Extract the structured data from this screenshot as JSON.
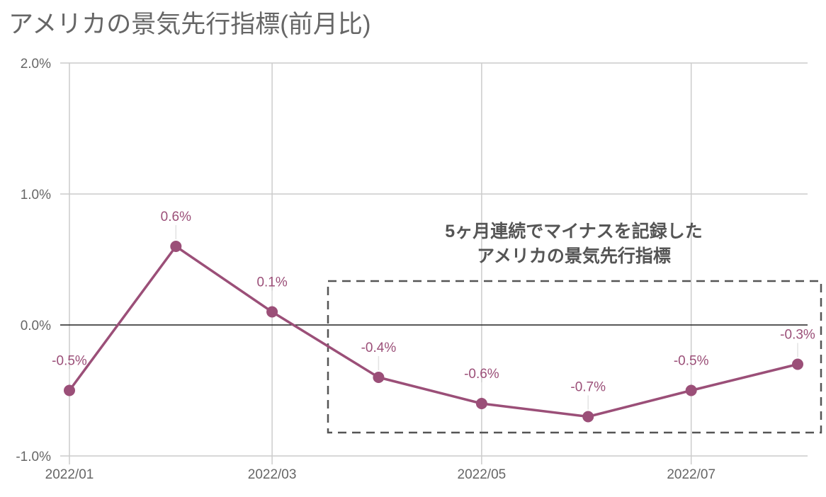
{
  "chart_data": {
    "type": "line",
    "title": "アメリカの景気先行指標(前月比)",
    "xlabel": "",
    "ylabel": "",
    "x": [
      "2022/01",
      "2022/02",
      "2022/03",
      "2022/04",
      "2022/05",
      "2022/06",
      "2022/07",
      "2022/08"
    ],
    "x_day_offsets": [
      0,
      31,
      59,
      90,
      120,
      151,
      181,
      212
    ],
    "x_ticks": [
      {
        "label": "2022/01",
        "day": 0
      },
      {
        "label": "2022/03",
        "day": 59
      },
      {
        "label": "2022/05",
        "day": 120
      },
      {
        "label": "2022/07",
        "day": 181
      }
    ],
    "series": [
      {
        "name": "景気先行指標(前月比)",
        "values": [
          -0.5,
          0.6,
          0.1,
          -0.4,
          -0.6,
          -0.7,
          -0.5,
          -0.3
        ],
        "labels": [
          "-0.5%",
          "0.6%",
          "0.1%",
          "-0.4%",
          "-0.6%",
          "-0.7%",
          "-0.5%",
          "-0.3%"
        ]
      }
    ],
    "y_ticks": [
      {
        "value": 2.0,
        "label": "2.0%"
      },
      {
        "value": 1.0,
        "label": "1.0%"
      },
      {
        "value": 0.0,
        "label": "0.0%"
      },
      {
        "value": -1.0,
        "label": "-1.0%"
      }
    ],
    "ylim": [
      -1.0,
      2.0
    ],
    "grid": true,
    "annotation": {
      "lines": [
        "5ヶ月連続でマイナスを記録した",
        "アメリカの景気先行指標"
      ],
      "highlight_range": [
        "2022/04",
        "2022/08"
      ]
    },
    "colors": {
      "line": "#9b4f78",
      "grid": "#cccccc",
      "zero": "#222222",
      "text": "#666666",
      "annotation": "#555555"
    }
  }
}
